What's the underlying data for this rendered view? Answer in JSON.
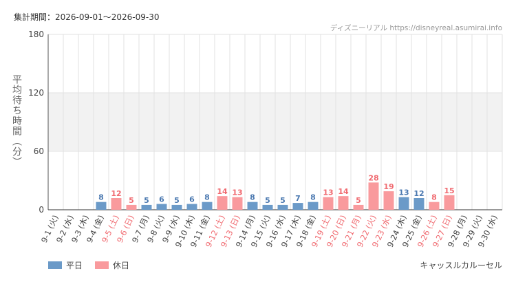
{
  "header": {
    "period_label": "集計期間：2026-09-01～2026-09-30",
    "credit": "ディズニーリアル https://disneyreal.asumirai.info"
  },
  "attraction_name": "キャッスルカルーセル",
  "colors": {
    "weekday": "#6b9ac8",
    "holiday": "#f99a9d",
    "weekday_label": "#4a78b0",
    "holiday_label": "#f06a70",
    "band": "#f2f2f2",
    "grid": "#e2e2e2",
    "axis": "#333333"
  },
  "legend": {
    "weekday": "平日",
    "holiday": "休日"
  },
  "chart_data": {
    "type": "bar",
    "ylabel": "平均待ち時間（分）",
    "ylim": [
      0,
      180
    ],
    "yticks": [
      "0",
      "60",
      "120",
      "180"
    ],
    "ytick_values": [
      0,
      60,
      120,
      180
    ],
    "grid": true,
    "legend_position": "bottom-left",
    "categories": [
      "9-1 (火)",
      "9-2 (水)",
      "9-3 (木)",
      "9-4 (金)",
      "9-5 (土)",
      "9-6 (日)",
      "9-7 (月)",
      "9-8 (火)",
      "9-9 (水)",
      "9-10 (木)",
      "9-11 (金)",
      "9-12 (土)",
      "9-13 (日)",
      "9-14 (月)",
      "9-15 (火)",
      "9-16 (水)",
      "9-17 (木)",
      "9-18 (金)",
      "9-19 (土)",
      "9-20 (日)",
      "9-21 (月)",
      "9-22 (火)",
      "9-23 (水)",
      "9-24 (木)",
      "9-25 (金)",
      "9-26 (土)",
      "9-27 (日)",
      "9-28 (月)",
      "9-29 (火)",
      "9-30 (水)"
    ],
    "values": [
      null,
      null,
      null,
      8,
      12,
      5,
      5,
      6,
      5,
      6,
      8,
      14,
      13,
      8,
      5,
      5,
      7,
      8,
      13,
      14,
      5,
      28,
      19,
      13,
      12,
      8,
      15,
      null,
      null,
      null
    ],
    "day_type": [
      "weekday",
      "weekday",
      "weekday",
      "weekday",
      "holiday",
      "holiday",
      "weekday",
      "weekday",
      "weekday",
      "weekday",
      "weekday",
      "holiday",
      "holiday",
      "weekday",
      "weekday",
      "weekday",
      "weekday",
      "weekday",
      "holiday",
      "holiday",
      "holiday",
      "holiday",
      "holiday",
      "weekday",
      "weekday",
      "holiday",
      "holiday",
      "weekday",
      "weekday",
      "weekday"
    ],
    "series": [
      {
        "name": "平日",
        "color": "#6b9ac8"
      },
      {
        "name": "休日",
        "color": "#f99a9d"
      }
    ]
  }
}
